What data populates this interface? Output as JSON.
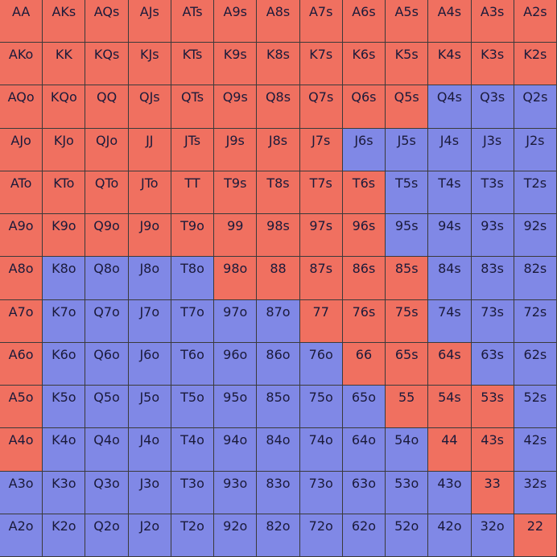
{
  "colors": {
    "raise": "#f07060",
    "fold": "#8088e6"
  },
  "legend": {
    "R": "raise",
    "F": "fold"
  },
  "rows": [
    {
      "hands": [
        "AA",
        "AKs",
        "AQs",
        "AJs",
        "ATs",
        "A9s",
        "A8s",
        "A7s",
        "A6s",
        "A5s",
        "A4s",
        "A3s",
        "A2s"
      ],
      "actions": "RRRRRRRRRRRRR"
    },
    {
      "hands": [
        "AKo",
        "KK",
        "KQs",
        "KJs",
        "KTs",
        "K9s",
        "K8s",
        "K7s",
        "K6s",
        "K5s",
        "K4s",
        "K3s",
        "K2s"
      ],
      "actions": "RRRRRRRRRRRRR"
    },
    {
      "hands": [
        "AQo",
        "KQo",
        "QQ",
        "QJs",
        "QTs",
        "Q9s",
        "Q8s",
        "Q7s",
        "Q6s",
        "Q5s",
        "Q4s",
        "Q3s",
        "Q2s"
      ],
      "actions": "RRRRRRRRRRFFF"
    },
    {
      "hands": [
        "AJo",
        "KJo",
        "QJo",
        "JJ",
        "JTs",
        "J9s",
        "J8s",
        "J7s",
        "J6s",
        "J5s",
        "J4s",
        "J3s",
        "J2s"
      ],
      "actions": "RRRRRRRRFFFFF"
    },
    {
      "hands": [
        "ATo",
        "KTo",
        "QTo",
        "JTo",
        "TT",
        "T9s",
        "T8s",
        "T7s",
        "T6s",
        "T5s",
        "T4s",
        "T3s",
        "T2s"
      ],
      "actions": "RRRRRRRRRFFFF"
    },
    {
      "hands": [
        "A9o",
        "K9o",
        "Q9o",
        "J9o",
        "T9o",
        "99",
        "98s",
        "97s",
        "96s",
        "95s",
        "94s",
        "93s",
        "92s"
      ],
      "actions": "RRRRRRRRRFFFF"
    },
    {
      "hands": [
        "A8o",
        "K8o",
        "Q8o",
        "J8o",
        "T8o",
        "98o",
        "88",
        "87s",
        "86s",
        "85s",
        "84s",
        "83s",
        "82s"
      ],
      "actions": "RFFFFRRRRRFFF"
    },
    {
      "hands": [
        "A7o",
        "K7o",
        "Q7o",
        "J7o",
        "T7o",
        "97o",
        "87o",
        "77",
        "76s",
        "75s",
        "74s",
        "73s",
        "72s"
      ],
      "actions": "RFFFFFFRRRFFF"
    },
    {
      "hands": [
        "A6o",
        "K6o",
        "Q6o",
        "J6o",
        "T6o",
        "96o",
        "86o",
        "76o",
        "66",
        "65s",
        "64s",
        "63s",
        "62s"
      ],
      "actions": "RFFFFFFFRRRFF"
    },
    {
      "hands": [
        "A5o",
        "K5o",
        "Q5o",
        "J5o",
        "T5o",
        "95o",
        "85o",
        "75o",
        "65o",
        "55",
        "54s",
        "53s",
        "52s"
      ],
      "actions": "RFFFFFFFFRRRF"
    },
    {
      "hands": [
        "A4o",
        "K4o",
        "Q4o",
        "J4o",
        "T4o",
        "94o",
        "84o",
        "74o",
        "64o",
        "54o",
        "44",
        "43s",
        "42s"
      ],
      "actions": "RFFFFFFFFFRRF"
    },
    {
      "hands": [
        "A3o",
        "K3o",
        "Q3o",
        "J3o",
        "T3o",
        "93o",
        "83o",
        "73o",
        "63o",
        "53o",
        "43o",
        "33",
        "32s"
      ],
      "actions": "FFFFFFFFFFFRF"
    },
    {
      "hands": [
        "A2o",
        "K2o",
        "Q2o",
        "J2o",
        "T2o",
        "92o",
        "82o",
        "72o",
        "62o",
        "52o",
        "42o",
        "32o",
        "22"
      ],
      "actions": "FFFFFFFFFFFFR"
    }
  ]
}
